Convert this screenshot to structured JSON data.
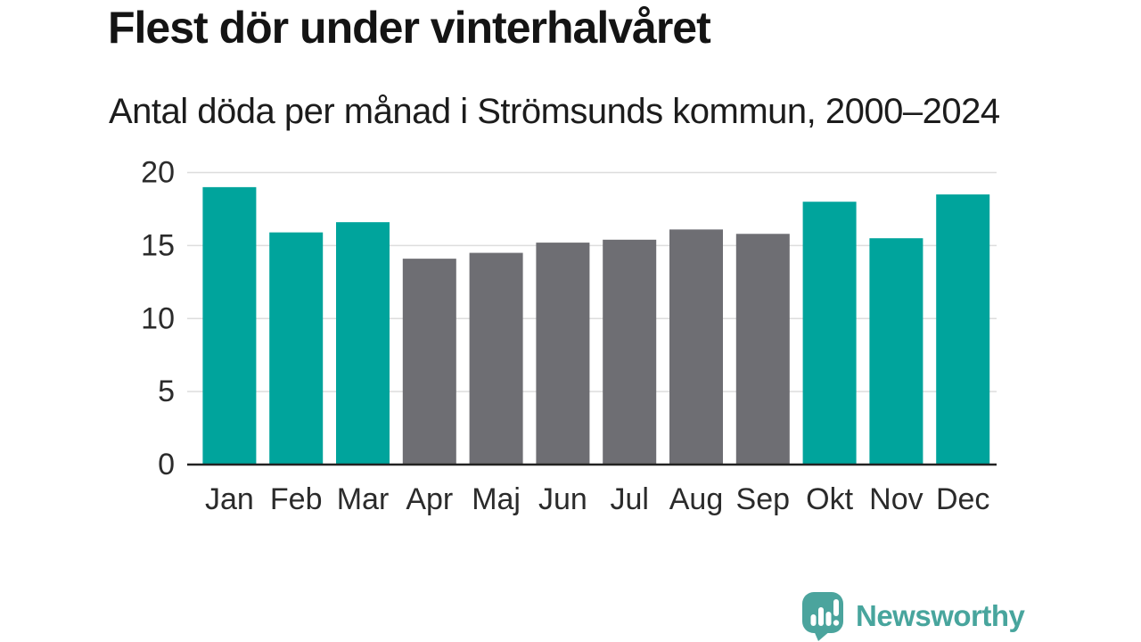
{
  "chart_data": {
    "type": "bar",
    "title": "Flest dör under vinterhalvåret",
    "subtitle": "Antal döda per månad i Strömsunds kommun, 2000–2024",
    "categories": [
      "Jan",
      "Feb",
      "Mar",
      "Apr",
      "Maj",
      "Jun",
      "Jul",
      "Aug",
      "Sep",
      "Okt",
      "Nov",
      "Dec"
    ],
    "values": [
      19.0,
      15.9,
      16.6,
      14.1,
      14.5,
      15.2,
      15.4,
      16.1,
      15.8,
      18.0,
      15.5,
      18.5
    ],
    "xlabel": "",
    "ylabel": "",
    "ylim": [
      0,
      20
    ],
    "yticks": [
      0,
      5,
      10,
      15,
      20
    ],
    "grid": "horizontal",
    "legend": "none",
    "colors": {
      "winter_highlight": "#00A49C",
      "summer_base": "#6E6E73",
      "gridline": "#DDDDDD",
      "axis_line": "#222222",
      "text": "#2b2b2b"
    },
    "bar_colors": [
      "#00A49C",
      "#00A49C",
      "#00A49C",
      "#6E6E73",
      "#6E6E73",
      "#6E6E73",
      "#6E6E73",
      "#6E6E73",
      "#6E6E73",
      "#00A49C",
      "#00A49C",
      "#00A49C"
    ]
  },
  "footer": {
    "brand": "Newsworthy",
    "brand_color": "#48A59D"
  }
}
